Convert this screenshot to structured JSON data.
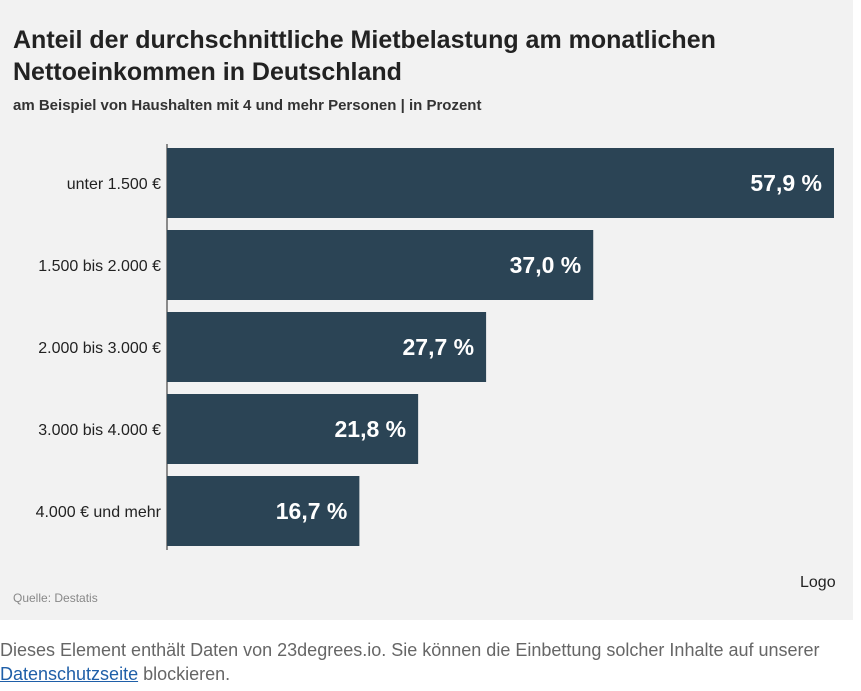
{
  "chart_data": {
    "type": "bar",
    "orientation": "horizontal",
    "title": "Anteil der durchschnittliche Mietbelastung am monatlichen Nettoeinkommen in Deutschland",
    "subtitle": "am Beispiel von Haushalten mit 4 und mehr Personen | in Prozent",
    "categories": [
      "unter 1.500 €",
      "1.500 bis 2.000 €",
      "2.000 bis 3.000 €",
      "3.000 bis 4.000 €",
      "4.000 € und mehr"
    ],
    "values": [
      57.9,
      37.0,
      27.7,
      21.8,
      16.7
    ],
    "value_labels": [
      "57,9 %",
      "37,0 %",
      "27,7 %",
      "21,8 %",
      "16,7 %"
    ],
    "xlim": [
      0,
      57.9
    ],
    "unit": "%",
    "bar_color": "#2b4455",
    "label_color": "#ffffff",
    "grid": false,
    "legend": "none",
    "xlabel": "",
    "ylabel": ""
  },
  "source": "Quelle: Destatis",
  "logo": "Logo",
  "notice": {
    "before": "Dieses Element enthält Daten von 23degrees.io. Sie können die Einbettung solcher Inhalte auf unserer ",
    "link": "Datenschutzseite",
    "after": " blockieren."
  }
}
